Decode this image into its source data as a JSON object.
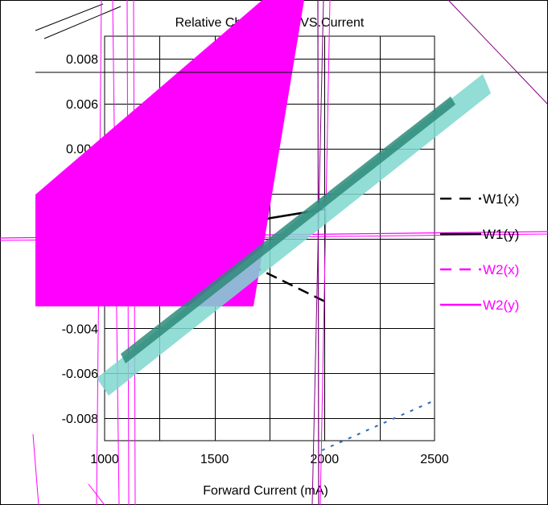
{
  "chart_data": {
    "type": "line",
    "title": "Relative Chromaticity VS.Current",
    "xlabel": "Forward Current (mA)",
    "ylabel": "",
    "xlim": [
      1000,
      2500
    ],
    "ylim": [
      -0.009,
      0.009
    ],
    "x_ticks": [
      1000,
      1500,
      2000,
      2500
    ],
    "y_ticks": [
      0.008,
      0.006,
      0.004,
      -0.004,
      -0.006,
      -0.008
    ],
    "x_tick_labels": [
      "1000",
      "1500",
      "2000",
      "2500"
    ],
    "y_tick_labels": [
      "0.008",
      "0.006",
      "0.004",
      "-0.004",
      "-0.006",
      "-0.008"
    ],
    "grid": true,
    "legend_position": "right",
    "series": [
      {
        "name": "W1(x)",
        "color": "#000000",
        "dash": "dashed",
        "x": [
          1000,
          1250,
          1500,
          1750,
          2000
        ],
        "y": [
          0.0,
          0.0008,
          -0.0004,
          -0.0016,
          -0.0028
        ]
      },
      {
        "name": "W1(y)",
        "color": "#000000",
        "dash": "solid",
        "x": [
          1000,
          1250,
          1500,
          1750,
          2000
        ],
        "y": [
          -0.0018,
          -0.0009,
          0.0001,
          0.0009,
          0.0013
        ]
      },
      {
        "name": "W2(x)",
        "color": "#ff00ff",
        "dash": "dashed",
        "x": [],
        "y": []
      },
      {
        "name": "W2(y)",
        "color": "#ff00ff",
        "dash": "solid",
        "x": [],
        "y": []
      }
    ]
  }
}
